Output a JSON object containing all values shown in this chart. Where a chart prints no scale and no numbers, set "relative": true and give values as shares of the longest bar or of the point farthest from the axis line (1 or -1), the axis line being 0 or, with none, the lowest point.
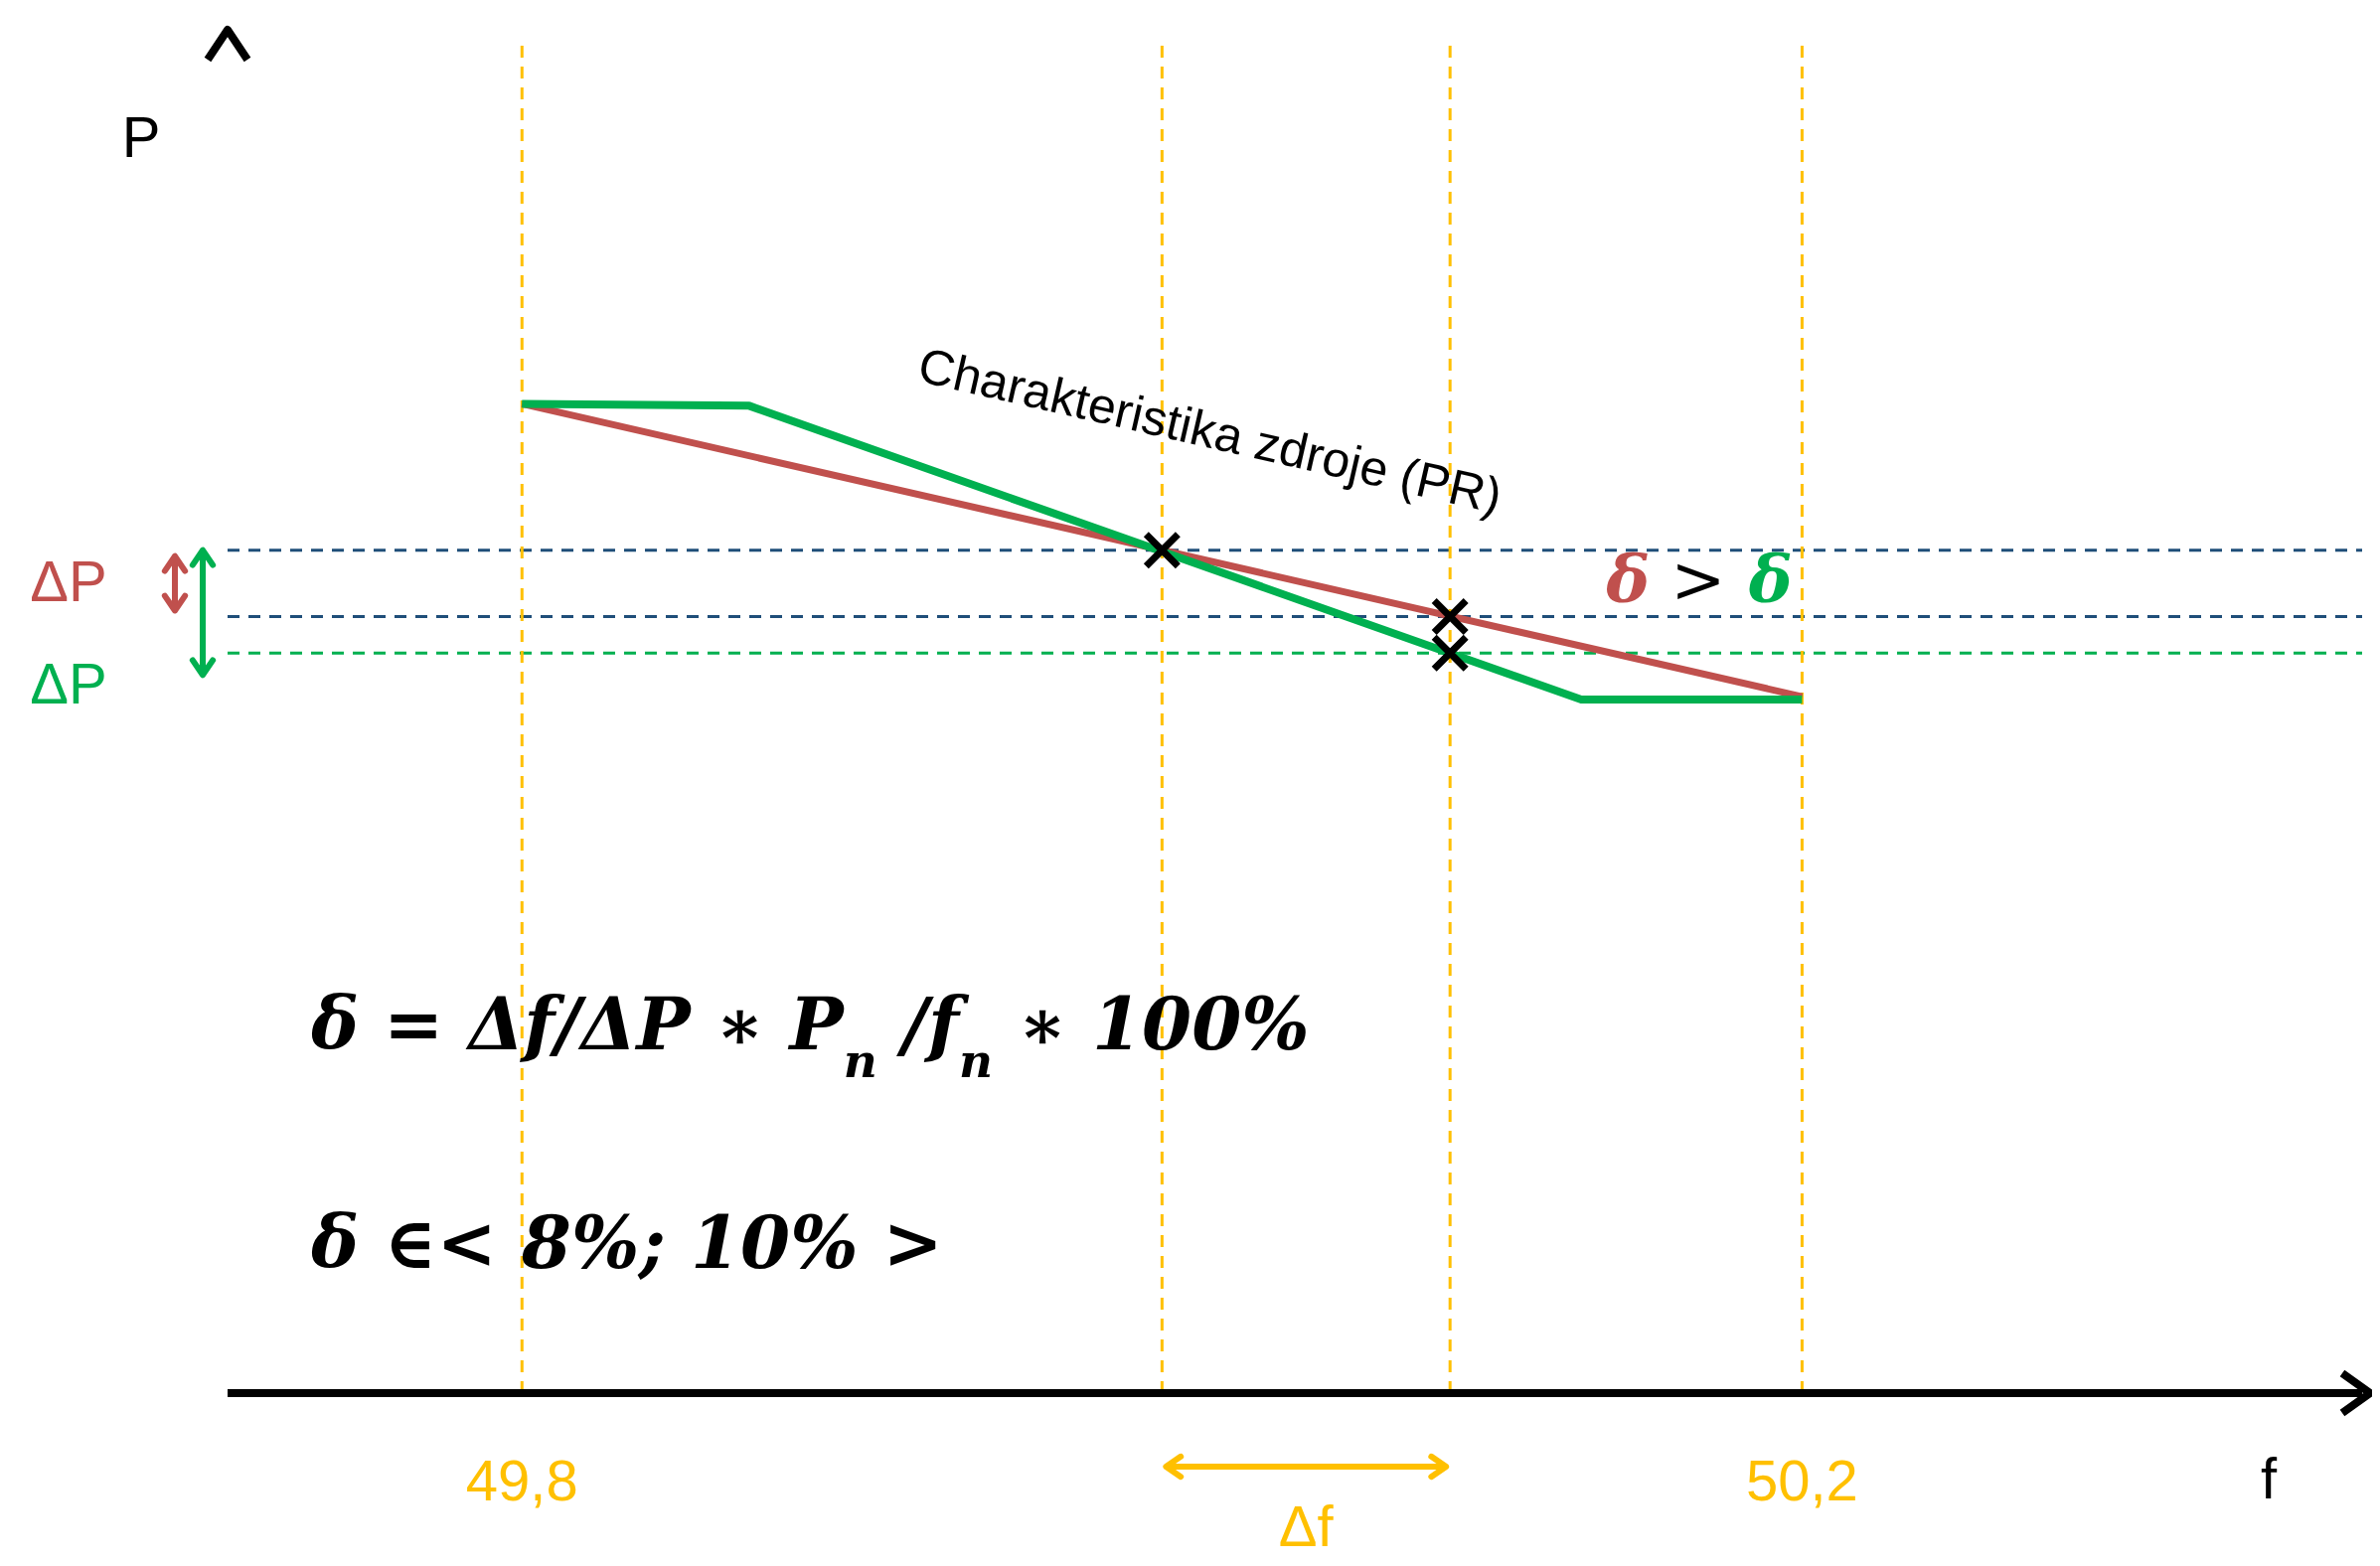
{
  "chart_data": {
    "type": "line",
    "xlabel": "f",
    "ylabel": "P",
    "relative": true,
    "xlim": [
      49.708,
      50.375
    ],
    "xticks": [
      {
        "value": 49.8,
        "label": "49,8"
      },
      {
        "value": 50.2,
        "label": "50,2"
      }
    ],
    "series": [
      {
        "color": "#c0504d",
        "x": [
          49.8,
          50.2
        ],
        "values": [
          1,
          0.704
        ]
      },
      {
        "color": "#00b050",
        "x": [
          49.8,
          49.871,
          50.131,
          50.2
        ],
        "values": [
          1,
          0.998,
          0.701,
          0.701
        ]
      },
      {
        "type": "scatter",
        "color": "#000000",
        "marker": "cross",
        "x": [
          50.0,
          50.09,
          50.09
        ],
        "values": [
          0.852,
          0.785,
          0.748
        ]
      }
    ],
    "ref_lines": [
      {
        "axis": "y",
        "value": 0.852,
        "color": "#1f4e79",
        "line_style": "dashed"
      },
      {
        "axis": "y",
        "value": 0.785,
        "color": "#1f4e79",
        "line_style": "dashed"
      },
      {
        "axis": "y",
        "value": 0.748,
        "color": "#00b050",
        "line_style": "dashed"
      },
      {
        "axis": "x",
        "value": 49.8,
        "color": "#ffc000",
        "line_style": "dashed"
      },
      {
        "axis": "x",
        "value": 50.0,
        "color": "#ffc000",
        "line_style": "dashed"
      },
      {
        "axis": "x",
        "value": 50.09,
        "color": "#ffc000",
        "line_style": "dashed"
      },
      {
        "axis": "x",
        "value": 50.2,
        "color": "#ffc000",
        "line_style": "dashed"
      }
    ],
    "annotations": [
      "Charakteristika zdroje (PR)",
      "δ > δ",
      "ΔP",
      "ΔP",
      "Δf",
      "δ = Δf/ΔP ∗ P$_{n}$/f$_{n}$ ∗ 100%",
      "δ ∈< 8%; 10% >"
    ]
  }
}
